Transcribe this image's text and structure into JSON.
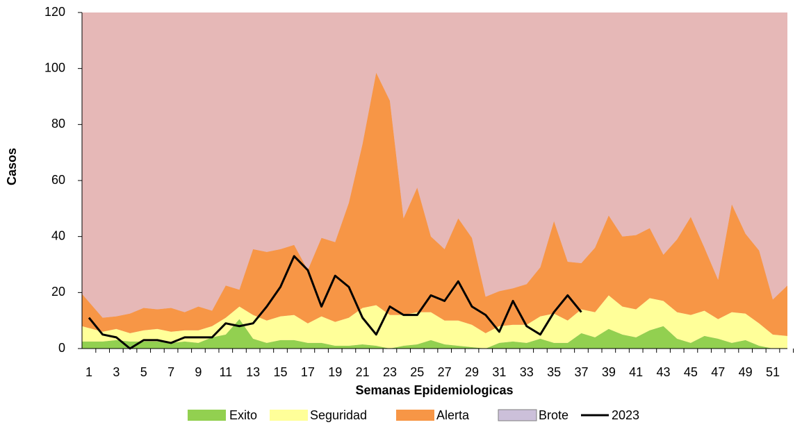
{
  "chart_data": {
    "type": "stacked_area_line",
    "x_label": "Semanas Epidemiologicas",
    "y_label": "Casos",
    "categories": [
      1,
      null,
      3,
      null,
      5,
      null,
      7,
      null,
      9,
      null,
      11,
      null,
      13,
      null,
      15,
      null,
      17,
      null,
      19,
      null,
      21,
      null,
      23,
      null,
      25,
      null,
      27,
      null,
      29,
      null,
      31,
      null,
      33,
      null,
      35,
      null,
      37,
      null,
      39,
      null,
      41,
      null,
      43,
      null,
      45,
      null,
      47,
      null,
      49,
      null,
      51,
      null
    ],
    "ylim": [
      0,
      120
    ],
    "yticks": [
      0,
      20,
      40,
      60,
      80,
      100,
      120
    ],
    "series": [
      {
        "name": "Exito",
        "color": "#92d050",
        "kind": "area",
        "values": [
          2.5,
          2.5,
          3,
          2.5,
          2.5,
          2.5,
          2,
          2.5,
          2,
          4,
          5,
          10.5,
          3.5,
          2,
          3,
          3,
          2,
          2,
          1,
          1,
          1.5,
          1,
          0,
          1,
          1.5,
          3,
          1.5,
          1,
          0.5,
          0,
          2,
          2.5,
          2,
          3.5,
          2,
          2,
          5.5,
          4,
          7,
          5,
          4,
          6.5,
          8,
          3.5,
          2,
          4.5,
          3.5,
          2,
          3,
          1,
          0,
          0
        ]
      },
      {
        "name": "Seguridad",
        "color": "#ffff99",
        "kind": "area",
        "values": [
          5.5,
          3.5,
          4,
          3,
          4,
          4.5,
          4,
          4,
          4.5,
          4,
          6,
          4.5,
          8.5,
          8,
          8.5,
          9,
          7,
          9.5,
          8.5,
          10,
          13,
          14.5,
          12,
          11,
          11.5,
          10,
          8.5,
          9,
          8,
          5.5,
          6,
          6,
          6.5,
          8,
          10.5,
          8,
          8.5,
          9,
          12,
          10,
          10,
          11.5,
          9,
          9.5,
          10,
          9,
          7,
          11,
          9.5,
          8,
          5,
          4.5
        ]
      },
      {
        "name": "Alerta",
        "color": "#f79646",
        "kind": "area",
        "values": [
          11.5,
          5,
          4.5,
          7,
          8,
          7,
          8.5,
          6.5,
          8.5,
          5.5,
          11.5,
          6,
          23.5,
          24.5,
          24,
          25,
          19,
          28,
          28.5,
          41,
          58.5,
          83,
          76.5,
          34.5,
          44.5,
          27,
          25.5,
          36.5,
          31,
          13,
          12.5,
          13,
          14.5,
          17.5,
          33,
          21,
          16.5,
          23,
          28.5,
          25,
          26.5,
          25,
          16.5,
          26,
          35,
          22.5,
          14,
          38.5,
          28.5,
          26,
          12.5,
          18
        ]
      },
      {
        "name": "Brote",
        "color": "#e6b8b7",
        "legend_color": "#ccc0da",
        "kind": "area",
        "values": [
          100.5,
          109,
          108.5,
          107.5,
          105.5,
          106,
          105.5,
          107,
          105,
          106.5,
          97.5,
          99,
          84.5,
          85.5,
          84.5,
          83,
          92,
          80.5,
          82,
          68,
          47,
          21.5,
          31.5,
          73.5,
          62.5,
          80,
          84.5,
          73.5,
          80.5,
          101.5,
          99.5,
          98.5,
          97,
          91,
          74.5,
          89,
          89.5,
          84,
          72.5,
          80,
          79.5,
          77,
          86.5,
          81,
          73,
          84,
          95.5,
          68.5,
          79,
          85,
          102.5,
          97.5
        ]
      },
      {
        "name": "2023",
        "color": "#000000",
        "kind": "line",
        "values": [
          11,
          5,
          4,
          0,
          3,
          3,
          2,
          4,
          4,
          4,
          9,
          8,
          9,
          15,
          22,
          33,
          28,
          15,
          26,
          22,
          11,
          5,
          15,
          12,
          12,
          19,
          17,
          24,
          15,
          12,
          6,
          17,
          8,
          5,
          13,
          19,
          13,
          null,
          null,
          null,
          null,
          null,
          null,
          null,
          null,
          null,
          null,
          null,
          null,
          null,
          null,
          null
        ]
      }
    ]
  }
}
